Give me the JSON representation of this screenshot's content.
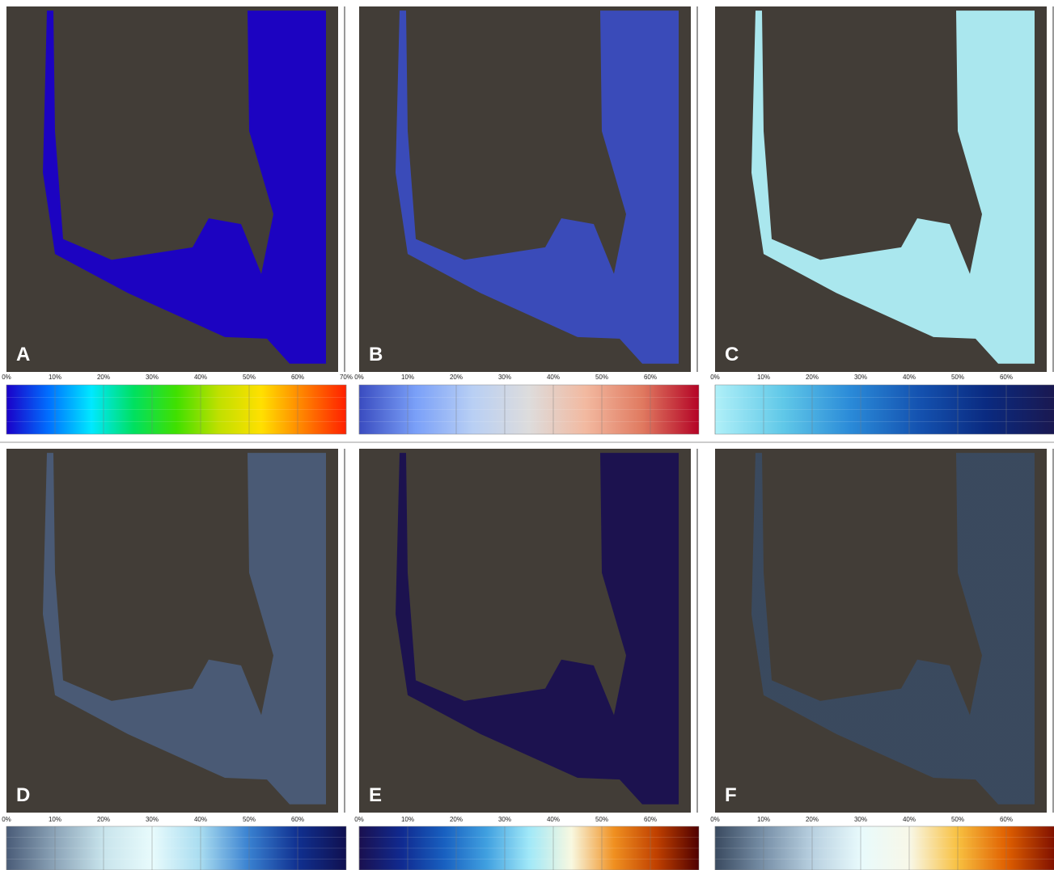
{
  "colorbar_range": [
    0,
    70
  ],
  "panels": [
    {
      "label": "A",
      "colors": [
        "#1a00c8",
        "#0070ff",
        "#00e8ff",
        "#00e060",
        "#40e000",
        "#c0e000",
        "#ffe000",
        "#ff8000",
        "#ff2000"
      ],
      "ticks": [
        {
          "value": 0,
          "label": "0%"
        },
        {
          "value": 10,
          "label": "10%"
        },
        {
          "value": 20,
          "label": "20%"
        },
        {
          "value": 30,
          "label": "30%"
        },
        {
          "value": 40,
          "label": "40%"
        },
        {
          "value": 50,
          "label": "50%"
        },
        {
          "value": 60,
          "label": "60%"
        },
        {
          "value": 70,
          "label": "70%"
        }
      ]
    },
    {
      "label": "B",
      "colors": [
        "#3a4cc0",
        "#7aa0f8",
        "#b8cff4",
        "#dddcdc",
        "#f2b9a0",
        "#e07a60",
        "#b40426"
      ],
      "ticks": [
        {
          "value": 0,
          "label": "0%"
        },
        {
          "value": 10,
          "label": "10%"
        },
        {
          "value": 20,
          "label": "20%"
        },
        {
          "value": 30,
          "label": "30%"
        },
        {
          "value": 40,
          "label": "40%"
        },
        {
          "value": 50,
          "label": "50%"
        },
        {
          "value": 60,
          "label": "60%"
        }
      ]
    },
    {
      "label": "C",
      "colors": [
        "#b0f0f8",
        "#60c8e8",
        "#2a8ad8",
        "#1452b0",
        "#0a2a80",
        "#1a1850"
      ],
      "ticks": [
        {
          "value": 0,
          "label": "0%"
        },
        {
          "value": 10,
          "label": "10%"
        },
        {
          "value": 20,
          "label": "20%"
        },
        {
          "value": 30,
          "label": "30%"
        },
        {
          "value": 40,
          "label": "40%"
        },
        {
          "value": 50,
          "label": "50%"
        },
        {
          "value": 60,
          "label": "60%"
        }
      ]
    },
    {
      "label": "D",
      "colors": [
        "#4a5c78",
        "#8ca4b8",
        "#c8e4ec",
        "#e8fbfc",
        "#a8dcf0",
        "#3880d0",
        "#103090",
        "#101050"
      ],
      "ticks": [
        {
          "value": 0,
          "label": "0%"
        },
        {
          "value": 10,
          "label": "10%"
        },
        {
          "value": 20,
          "label": "20%"
        },
        {
          "value": 30,
          "label": "30%"
        },
        {
          "value": 40,
          "label": "40%"
        },
        {
          "value": 50,
          "label": "50%"
        },
        {
          "value": 60,
          "label": "60%"
        }
      ]
    },
    {
      "label": "E",
      "colors": [
        "#1a1050",
        "#102a90",
        "#1860c0",
        "#40a0e0",
        "#a0e8f8",
        "#f8f8e0",
        "#f09020",
        "#c04000",
        "#500000"
      ],
      "ticks": [
        {
          "value": 0,
          "label": "0%"
        },
        {
          "value": 10,
          "label": "10%"
        },
        {
          "value": 20,
          "label": "20%"
        },
        {
          "value": 30,
          "label": "30%"
        },
        {
          "value": 40,
          "label": "40%"
        },
        {
          "value": 50,
          "label": "50%"
        },
        {
          "value": 60,
          "label": "60%"
        }
      ]
    },
    {
      "label": "F",
      "colors": [
        "#3a4a60",
        "#7890a8",
        "#b8d0e0",
        "#e8fafc",
        "#f8f8e8",
        "#f8c040",
        "#e06000",
        "#801000"
      ],
      "ticks": [
        {
          "value": 0,
          "label": "0%"
        },
        {
          "value": 10,
          "label": "10%"
        },
        {
          "value": 20,
          "label": "20%"
        },
        {
          "value": 30,
          "label": "30%"
        },
        {
          "value": 40,
          "label": "40%"
        },
        {
          "value": 50,
          "label": "50%"
        },
        {
          "value": 60,
          "label": "60%"
        }
      ]
    }
  ]
}
